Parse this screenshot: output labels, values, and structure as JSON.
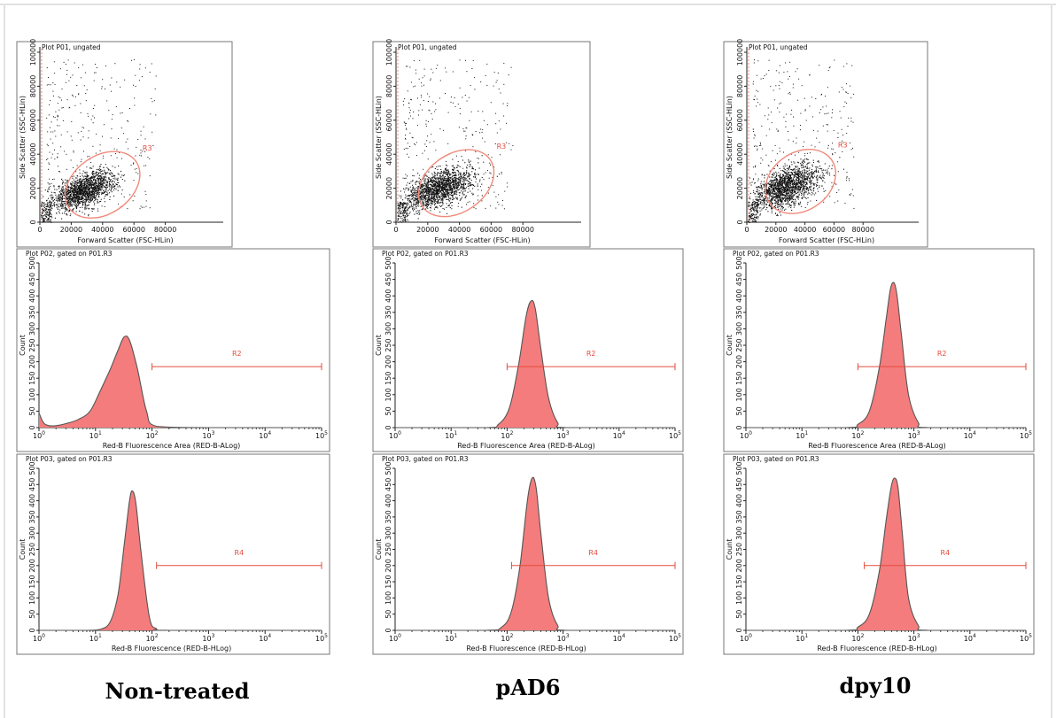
{
  "chart_data": [
    {
      "panel": "dot",
      "column": 0,
      "row": 0,
      "type": "scatter",
      "title": "Plot P01, ungated",
      "xlabel": "Forward Scatter (FSC-HLin)",
      "ylabel": "Side Scatter (SSC-HLin)",
      "xlim": [
        0,
        100000
      ],
      "ylim": [
        0,
        100000
      ],
      "xticks": [
        "0",
        "20000",
        "40000",
        "60000",
        "80000"
      ],
      "yticks": [
        "0",
        "20000",
        "40000",
        "60000",
        "80000",
        "100000"
      ],
      "cloud": {
        "center": [
          28000,
          19000
        ],
        "spread": [
          10000,
          5500
        ]
      },
      "gate": {
        "name": "R3",
        "center": [
          40000,
          22000
        ],
        "semi_axes": [
          26000,
          17000
        ],
        "rotation_deg": 35
      }
    },
    {
      "panel": "hist",
      "column": 0,
      "row": 1,
      "type": "area",
      "title": "Plot P02, gated on P01.R3",
      "xlabel": "Red-B Fluorescence Area (RED-B-ALog)",
      "ylabel": "Count",
      "xscale": "log",
      "xlim": [
        1,
        100000
      ],
      "ylim": [
        0,
        500
      ],
      "yticks": [
        "0",
        "50",
        "100",
        "150",
        "200",
        "250",
        "300",
        "350",
        "400",
        "450",
        "500"
      ],
      "curve": {
        "x": [
          1,
          1.2,
          1.5,
          2,
          3,
          5,
          8,
          12,
          18,
          25,
          32,
          40,
          55,
          80,
          120,
          1000,
          100000
        ],
        "y": [
          45,
          15,
          6,
          6,
          12,
          25,
          50,
          110,
          175,
          235,
          275,
          265,
          180,
          50,
          4,
          0,
          0
        ]
      },
      "gate": {
        "name": "R2",
        "range": [
          100,
          100000
        ],
        "y": 185
      }
    },
    {
      "panel": "hist",
      "column": 0,
      "row": 2,
      "type": "area",
      "title": "Plot P03, gated on P01.R3",
      "xlabel": "Red-B Fluorescence (RED-B-HLog)",
      "ylabel": "Count",
      "xscale": "log",
      "xlim": [
        1,
        100000
      ],
      "ylim": [
        0,
        500
      ],
      "yticks": [
        "0",
        "50",
        "100",
        "150",
        "200",
        "250",
        "300",
        "350",
        "400",
        "450",
        "500"
      ],
      "curve": {
        "x": [
          1,
          7,
          12,
          18,
          25,
          32,
          40,
          45,
          52,
          65,
          90,
          120,
          200,
          100000
        ],
        "y": [
          0,
          0,
          3,
          25,
          110,
          260,
          400,
          430,
          390,
          230,
          40,
          5,
          0,
          0
        ]
      },
      "gate": {
        "name": "R4",
        "range": [
          120,
          100000
        ],
        "y": 200
      }
    },
    {
      "panel": "dot",
      "column": 1,
      "row": 0,
      "type": "scatter",
      "title": "Plot P01, ungated",
      "xlabel": "Forward Scatter (FSC-HLin)",
      "ylabel": "Side Scatter (SSC-HLin)",
      "xlim": [
        0,
        100000
      ],
      "ylim": [
        0,
        100000
      ],
      "xticks": [
        "0",
        "20000",
        "40000",
        "60000",
        "80000"
      ],
      "yticks": [
        "0",
        "20000",
        "40000",
        "60000",
        "80000",
        "100000"
      ],
      "cloud": {
        "center": [
          27000,
          20000
        ],
        "spread": [
          11000,
          6000
        ]
      },
      "gate": {
        "name": "R3",
        "center": [
          38000,
          23000
        ],
        "semi_axes": [
          26000,
          17000
        ],
        "rotation_deg": 35
      }
    },
    {
      "panel": "hist",
      "column": 1,
      "row": 1,
      "type": "area",
      "title": "Plot P02, gated on P01.R3",
      "xlabel": "Red-B Fluorescence Area (RED-B-ALog)",
      "ylabel": "Count",
      "xscale": "log",
      "xlim": [
        1,
        100000
      ],
      "ylim": [
        0,
        500
      ],
      "yticks": [
        "0",
        "50",
        "100",
        "150",
        "200",
        "250",
        "300",
        "350",
        "400",
        "450",
        "500"
      ],
      "curve": {
        "x": [
          1,
          40,
          70,
          110,
          160,
          220,
          270,
          320,
          400,
          550,
          800,
          1200,
          100000
        ],
        "y": [
          0,
          0,
          10,
          60,
          190,
          340,
          385,
          360,
          240,
          90,
          15,
          0,
          0
        ]
      },
      "gate": {
        "name": "R2",
        "range": [
          100,
          100000
        ],
        "y": 185
      }
    },
    {
      "panel": "hist",
      "column": 1,
      "row": 2,
      "type": "area",
      "title": "Plot P03, gated on P01.R3",
      "xlabel": "Red-B Fluorescence (RED-B-HLog)",
      "ylabel": "Count",
      "xscale": "log",
      "xlim": [
        1,
        100000
      ],
      "ylim": [
        0,
        500
      ],
      "yticks": [
        "0",
        "50",
        "100",
        "150",
        "200",
        "250",
        "300",
        "350",
        "400",
        "450",
        "500"
      ],
      "curve": {
        "x": [
          1,
          40,
          80,
          120,
          170,
          230,
          280,
          330,
          400,
          550,
          800,
          1200,
          100000
        ],
        "y": [
          0,
          0,
          10,
          60,
          200,
          400,
          470,
          440,
          300,
          100,
          15,
          0,
          0
        ]
      },
      "gate": {
        "name": "R4",
        "range": [
          120,
          100000
        ],
        "y": 200
      }
    },
    {
      "panel": "dot",
      "column": 2,
      "row": 0,
      "type": "scatter",
      "title": "Plot P01, ungated",
      "xlabel": "Forward Scatter (FSC-HLin)",
      "ylabel": "Side Scatter (SSC-HLin)",
      "xlim": [
        0,
        100000
      ],
      "ylim": [
        0,
        100000
      ],
      "xticks": [
        "0",
        "20000",
        "40000",
        "60000",
        "80000"
      ],
      "yticks": [
        "0",
        "20000",
        "40000",
        "60000",
        "80000",
        "100000"
      ],
      "cloud": {
        "center": [
          27000,
          21000
        ],
        "spread": [
          11000,
          6500
        ]
      },
      "gate": {
        "name": "R3",
        "center": [
          37000,
          24000
        ],
        "semi_axes": [
          26000,
          17000
        ],
        "rotation_deg": 35
      }
    },
    {
      "panel": "hist",
      "column": 2,
      "row": 1,
      "type": "area",
      "title": "Plot P02, gated on P01.R3",
      "xlabel": "Red-B Fluorescence Area (RED-B-ALog)",
      "ylabel": "Count",
      "xscale": "log",
      "xlim": [
        1,
        100000
      ],
      "ylim": [
        0,
        500
      ],
      "yticks": [
        "0",
        "50",
        "100",
        "150",
        "200",
        "250",
        "300",
        "350",
        "400",
        "450",
        "500"
      ],
      "curve": {
        "x": [
          1,
          60,
          100,
          160,
          240,
          320,
          380,
          440,
          500,
          600,
          800,
          1200,
          1800,
          100000
        ],
        "y": [
          0,
          0,
          10,
          50,
          180,
          330,
          420,
          440,
          400,
          280,
          100,
          15,
          0,
          0
        ]
      },
      "gate": {
        "name": "R2",
        "range": [
          100,
          100000
        ],
        "y": 185
      }
    },
    {
      "panel": "hist",
      "column": 2,
      "row": 2,
      "type": "area",
      "title": "Plot P03, gated on P01.R3",
      "xlabel": "Red-B Fluorescence (RED-B-HLog)",
      "ylabel": "Count",
      "xscale": "log",
      "xlim": [
        1,
        100000
      ],
      "ylim": [
        0,
        500
      ],
      "yticks": [
        "0",
        "50",
        "100",
        "150",
        "200",
        "250",
        "300",
        "350",
        "400",
        "450",
        "500"
      ],
      "curve": {
        "x": [
          1,
          60,
          100,
          160,
          240,
          320,
          390,
          450,
          520,
          620,
          800,
          1200,
          1800,
          100000
        ],
        "y": [
          0,
          0,
          10,
          50,
          180,
          340,
          440,
          470,
          440,
          300,
          100,
          15,
          0,
          0
        ]
      },
      "gate": {
        "name": "R4",
        "range": [
          130,
          100000
        ],
        "y": 200
      }
    }
  ],
  "columns": [
    {
      "label": "Non-treated"
    },
    {
      "label": "pAD6"
    },
    {
      "label": "dpy10"
    }
  ],
  "colors": {
    "fill": "#f47c7c",
    "outline": "#555555",
    "gate": "#e34b3d",
    "gate_ellipse": "#f08a7a",
    "dots": "#111111"
  }
}
